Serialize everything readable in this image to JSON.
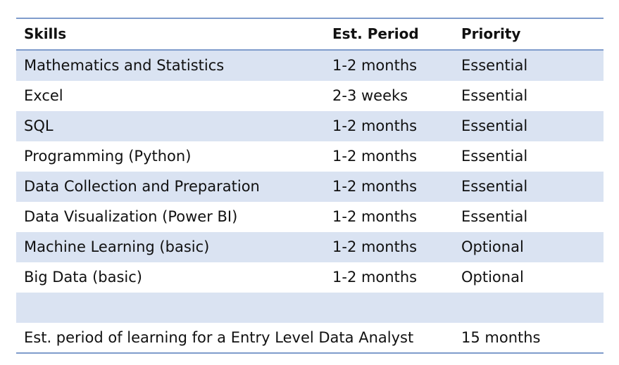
{
  "table": {
    "headers": [
      "Skills",
      "Est. Period",
      "Priority"
    ],
    "rows": [
      [
        "Mathematics and Statistics",
        "1-2 months",
        "Essential"
      ],
      [
        "Excel",
        "2-3 weeks",
        "Essential"
      ],
      [
        "SQL",
        "1-2 months",
        "Essential"
      ],
      [
        "Programming (Python)",
        "1-2 months",
        "Essential"
      ],
      [
        "Data Collection and Preparation",
        "1-2 months",
        "Essential"
      ],
      [
        "Data Visualization (Power BI)",
        "1-2 months",
        "Essential"
      ],
      [
        "Machine Learning (basic)",
        "1-2 months",
        "Optional"
      ],
      [
        "Big Data (basic)",
        "1-2 months",
        "Optional"
      ],
      [
        "",
        "",
        ""
      ]
    ],
    "summary": {
      "label": "Est. period of learning for a Entry Level Data Analyst",
      "value": "15 months"
    }
  },
  "colors": {
    "shaded_row": "#dae3f2",
    "rule": "#7f9ccc"
  }
}
